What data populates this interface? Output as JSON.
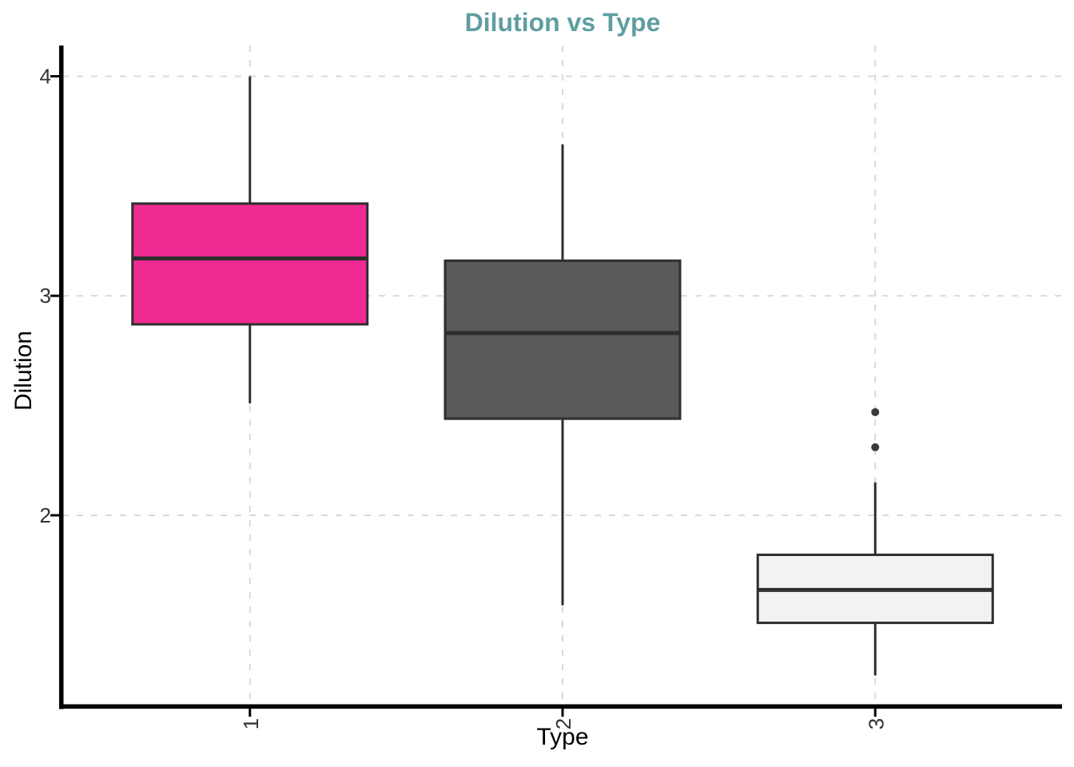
{
  "title": "Dilution vs Type",
  "accent_colors": {
    "title": "#5F9EA0",
    "gridline": "#D9D9D9",
    "axis_line": "#000000",
    "tick_label": "#333333",
    "box_border": "#2E2E2E",
    "outlier": "#3A3A3A"
  },
  "chart_data": {
    "type": "boxplot",
    "title": "Dilution vs Type",
    "xlabel": "Type",
    "ylabel": "Dilution",
    "categories": [
      "1",
      "2",
      "3"
    ],
    "y_tick_values": [
      2,
      3,
      4
    ],
    "y_tick_labels": [
      "2",
      "3",
      "4"
    ],
    "ylim": [
      1.13,
      4.14
    ],
    "grid": "dashed",
    "legend": "none",
    "x_tick_angle_degrees": 90,
    "series": [
      {
        "category": "1",
        "fill": "#EF2A93",
        "min": 2.51,
        "q1": 2.87,
        "median": 3.17,
        "q3": 3.42,
        "max": 4.0,
        "outliers": []
      },
      {
        "category": "2",
        "fill": "#595959",
        "min": 1.59,
        "q1": 2.44,
        "median": 2.83,
        "q3": 3.16,
        "max": 3.69,
        "outliers": []
      },
      {
        "category": "3",
        "fill": "#F2F2F2",
        "min": 1.27,
        "q1": 1.51,
        "median": 1.66,
        "q3": 1.82,
        "max": 2.15,
        "outliers": [
          2.31,
          2.47
        ]
      }
    ]
  }
}
